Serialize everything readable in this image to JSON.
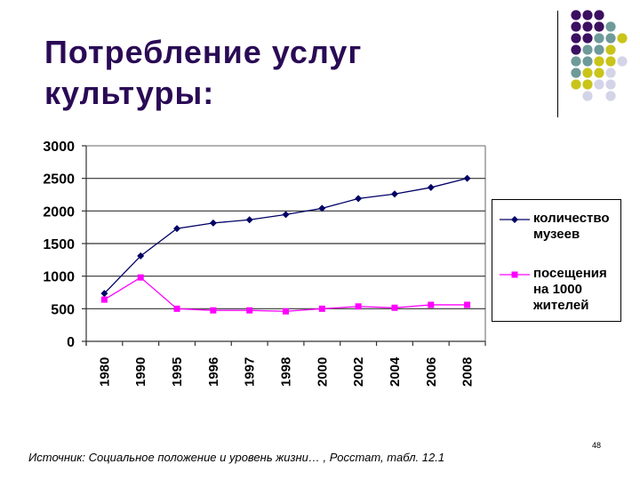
{
  "slide": {
    "title_lines": [
      "Потребление услуг",
      "культуры:"
    ],
    "source": "Источник: Социальное положение и уровень жизни… , Росстат, табл. 12.1",
    "page_number": "48",
    "colors": {
      "title": "#2a0a55",
      "dot_purple": "#3b1060",
      "dot_teal": "#6f9a9a",
      "dot_yellow": "#c9c41a",
      "dot_lavender": "#d4d4e8"
    },
    "dot_grid": [
      [
        "purple",
        "purple",
        "purple",
        null,
        null
      ],
      [
        "purple",
        "purple",
        "purple",
        "teal",
        null
      ],
      [
        "purple",
        "purple",
        "teal",
        "teal",
        "yellow"
      ],
      [
        "purple",
        "teal",
        "teal",
        "yellow",
        null
      ],
      [
        "teal",
        "teal",
        "yellow",
        "yellow",
        "lavender"
      ],
      [
        "teal",
        "yellow",
        "yellow",
        "lavender",
        null
      ],
      [
        "yellow",
        "yellow",
        "lavender",
        "lavender",
        null
      ],
      [
        null,
        "lavender",
        null,
        "lavender",
        null
      ]
    ]
  },
  "legend": {
    "items": [
      {
        "label_lines": [
          "количество",
          "музеев"
        ],
        "color": "#000066",
        "marker": "diamond"
      },
      {
        "label_lines": [
          "посещения",
          "на 1000",
          "жителей"
        ],
        "color": "#ff00ff",
        "marker": "square"
      }
    ]
  },
  "chart_data": {
    "type": "line",
    "title": "",
    "xlabel": "",
    "ylabel": "",
    "categories": [
      "1980",
      "1990",
      "1995",
      "1996",
      "1997",
      "1998",
      "2000",
      "2002",
      "2004",
      "2006",
      "2008"
    ],
    "series": [
      {
        "name": "количество музеев",
        "color": "#000066",
        "marker": "diamond",
        "values": [
          735,
          1310,
          1730,
          1815,
          1865,
          1945,
          2040,
          2190,
          2260,
          2360,
          2500
        ]
      },
      {
        "name": "посещения на 1000 жителей",
        "color": "#ff00ff",
        "marker": "square",
        "values": [
          640,
          980,
          500,
          475,
          475,
          460,
          500,
          535,
          515,
          560,
          560
        ]
      }
    ],
    "ylim": [
      0,
      3000
    ],
    "yticks": [
      0,
      500,
      1000,
      1500,
      2000,
      2500,
      3000
    ],
    "grid": true,
    "legend_position": "right"
  }
}
